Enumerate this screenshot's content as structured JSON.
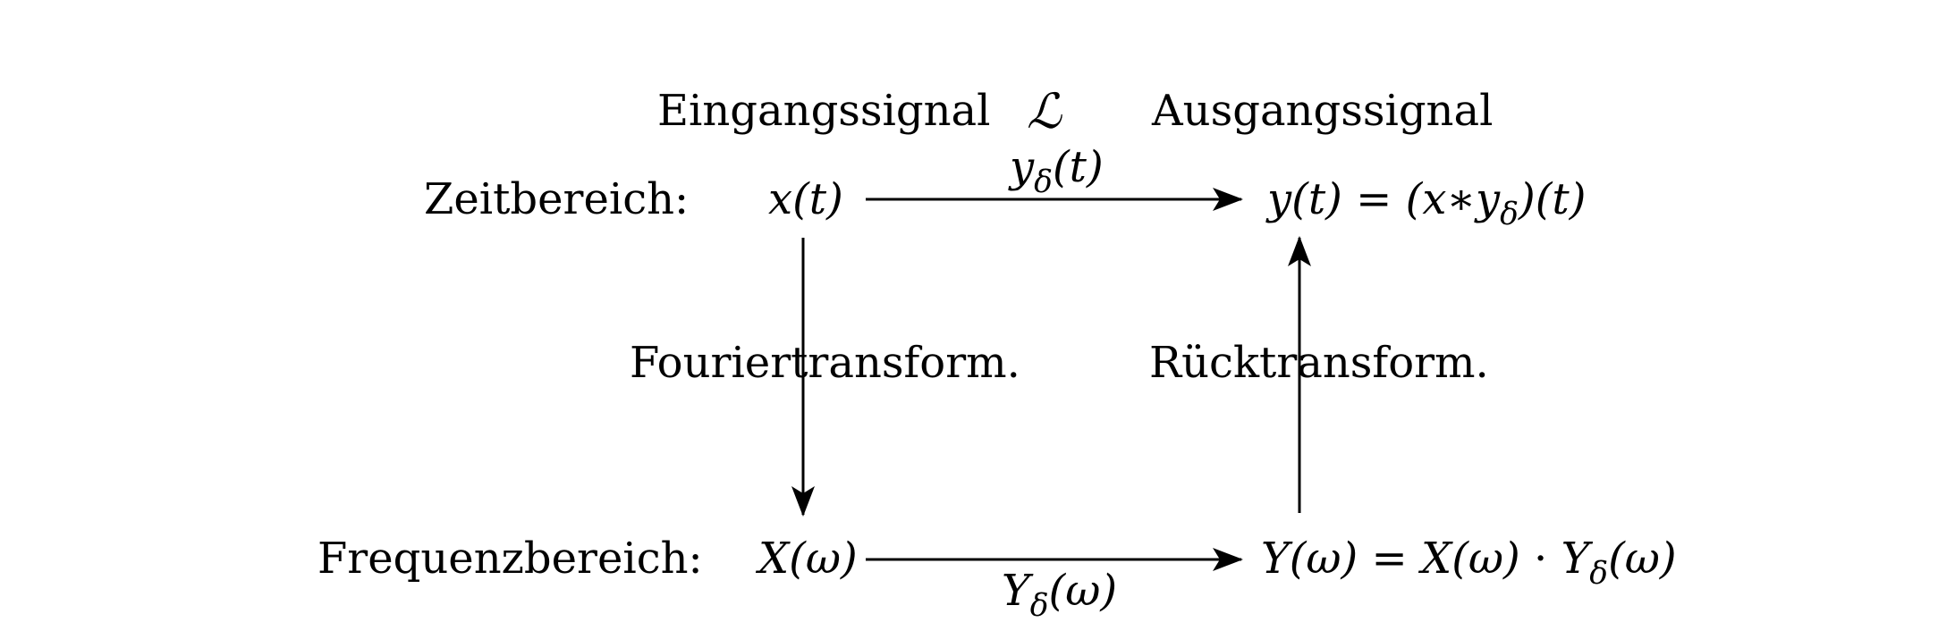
{
  "headers": {
    "input": "Eingangssignal",
    "system": "ℒ",
    "output": "Ausgangssignal"
  },
  "rows": {
    "time_domain": "Zeitbereich:",
    "frequency_domain": "Frequenzbereich:"
  },
  "nodes": {
    "x_t": {
      "f": "x",
      "arg": "(t)"
    },
    "y_t": {
      "lhs_f": "y",
      "lhs_arg": "(t)",
      "eq": " = ",
      "rhs_open": "(x∗y",
      "rhs_sub": "δ",
      "rhs_close": ")(t)"
    },
    "X_w": {
      "f": "X",
      "arg": "(ω)"
    },
    "Y_w": {
      "lhs_f": "Y",
      "lhs_arg": "(ω)",
      "eq": " = ",
      "X_f": "X",
      "X_arg": "(ω)",
      "dot": " · ",
      "Y_f": "Y",
      "Y_sub": "δ",
      "Y_arg": "(ω)"
    }
  },
  "edges": {
    "time_label": {
      "f": "y",
      "sub": "δ",
      "arg": "(t)"
    },
    "freq_label": {
      "f": "Y",
      "sub": "δ",
      "arg": "(ω)"
    },
    "fourier": "Fouriertransform.",
    "inverse": "Rücktransform."
  }
}
